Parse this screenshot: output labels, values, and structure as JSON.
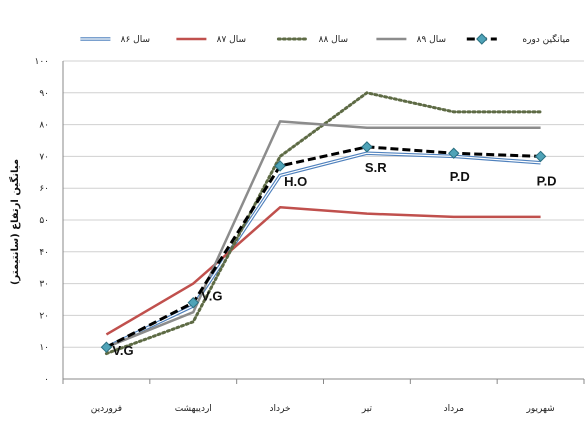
{
  "chart_data": {
    "type": "line",
    "ylabel": "میانگین ارتفاع (سانتیمتر)",
    "xlabel": "",
    "ylim": [
      0,
      100
    ],
    "yticks": [
      "۰",
      "۱۰",
      "۲۰",
      "۳۰",
      "۴۰",
      "۵۰",
      "۶۰",
      "۷۰",
      "۸۰",
      "۹۰",
      "۱۰۰"
    ],
    "categories": [
      "فروردین",
      "اردیبهشت",
      "خرداد",
      "تیر",
      "مرداد",
      "شهریور"
    ],
    "series": [
      {
        "name": "سال ۸۶",
        "values": [
          10,
          23,
          64,
          71,
          70,
          68
        ],
        "color": "#4f81bd",
        "style": "double"
      },
      {
        "name": "سال ۸۷",
        "values": [
          14,
          30,
          54,
          52,
          51,
          51
        ],
        "color": "#c0504d",
        "style": "solid"
      },
      {
        "name": "سال ۸۸",
        "values": [
          8,
          18,
          70,
          90,
          84,
          84
        ],
        "color": "#5e6b45",
        "style": "dotted"
      },
      {
        "name": "سال ۸۹",
        "values": [
          10,
          21,
          81,
          79,
          79,
          79
        ],
        "color": "#8c8c8c",
        "style": "solid"
      },
      {
        "name": "میانگین دوره",
        "values": [
          10,
          24,
          67,
          73,
          71,
          70
        ],
        "color": "#000000",
        "style": "dashed-marker"
      }
    ],
    "annotations": [
      {
        "text": "V.G",
        "category": 0,
        "value": 10
      },
      {
        "text": "V.G",
        "category": 1,
        "value": 24
      },
      {
        "text": "H.O",
        "category": 2,
        "value": 67
      },
      {
        "text": "S.R",
        "category": 3,
        "value": 73
      },
      {
        "text": "P.D",
        "category": 4,
        "value": 71
      },
      {
        "text": "P.D",
        "category": 5,
        "value": 70
      }
    ],
    "grid": true,
    "legend": "top"
  }
}
